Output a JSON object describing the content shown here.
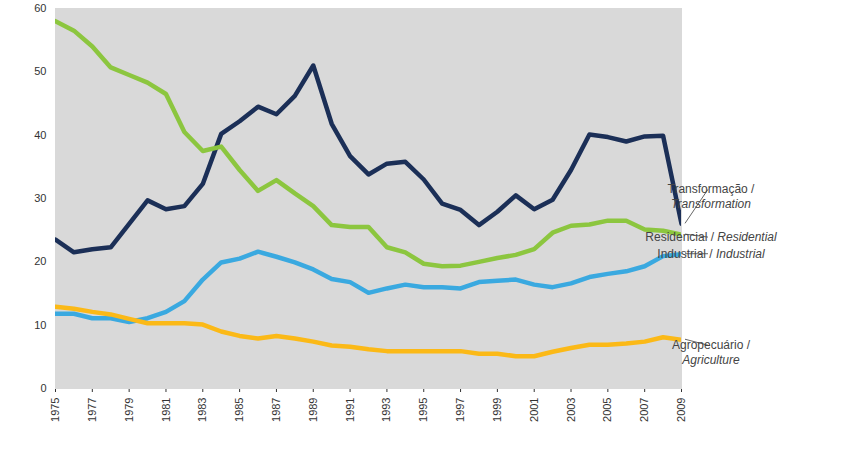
{
  "chart_data": {
    "type": "line",
    "x": [
      1975,
      1976,
      1977,
      1978,
      1979,
      1980,
      1981,
      1982,
      1983,
      1984,
      1985,
      1986,
      1987,
      1988,
      1989,
      1990,
      1991,
      1992,
      1993,
      1994,
      1995,
      1996,
      1997,
      1998,
      1999,
      2000,
      2001,
      2002,
      2003,
      2004,
      2005,
      2006,
      2007,
      2008,
      2009
    ],
    "xlim": [
      1975,
      2009
    ],
    "xticks": [
      1975,
      1977,
      1979,
      1981,
      1983,
      1985,
      1987,
      1989,
      1991,
      1993,
      1995,
      1997,
      1999,
      2001,
      2003,
      2005,
      2007,
      2009
    ],
    "ylim": [
      0,
      60
    ],
    "yticks": [
      0,
      10,
      20,
      30,
      40,
      50,
      60
    ],
    "grid": false,
    "series": [
      {
        "name": "Transformação / Transformation",
        "color": "#1b2f57",
        "values": [
          23.5,
          21.5,
          22,
          22.3,
          26,
          29.7,
          28.3,
          28.8,
          32.3,
          40.2,
          42.2,
          44.5,
          43.3,
          46.2,
          51,
          41.8,
          36.7,
          33.8,
          35.5,
          35.8,
          33,
          29.2,
          28.2,
          25.8,
          27.9,
          30.5,
          28.3,
          29.8,
          34.5,
          40.1,
          39.7,
          39,
          39.8,
          39.9,
          26
        ]
      },
      {
        "name": "Residencial / Residential",
        "color": "#8cc63f",
        "values": [
          58,
          56.5,
          54,
          50.7,
          49.5,
          48.3,
          46.5,
          40.5,
          37.5,
          38.2,
          34.5,
          31.2,
          32.9,
          30.8,
          28.8,
          25.8,
          25.5,
          25.5,
          22.3,
          21.5,
          19.7,
          19.3,
          19.4,
          20,
          20.6,
          21.1,
          22,
          24.6,
          25.7,
          25.9,
          26.5,
          26.5,
          25.1,
          24.9,
          24.3
        ]
      },
      {
        "name": "Industrial / Industrial",
        "color": "#3aa9e0",
        "values": [
          11.8,
          11.8,
          11.1,
          11.1,
          10.5,
          11.1,
          12.1,
          13.8,
          17.2,
          19.9,
          20.5,
          21.6,
          20.8,
          19.9,
          18.8,
          17.3,
          16.8,
          15.1,
          15.8,
          16.4,
          16,
          16,
          15.8,
          16.8,
          17,
          17.2,
          16.4,
          16,
          16.6,
          17.6,
          18.1,
          18.5,
          19.3,
          20.9,
          21.2
        ]
      },
      {
        "name": "Agropecuário / Agriculture",
        "color": "#fbb917",
        "values": [
          12.9,
          12.6,
          12.1,
          11.7,
          11,
          10.3,
          10.3,
          10.3,
          10.1,
          9,
          8.3,
          7.9,
          8.3,
          7.9,
          7.4,
          6.8,
          6.6,
          6.2,
          5.9,
          5.9,
          5.9,
          5.9,
          5.9,
          5.5,
          5.5,
          5.1,
          5.1,
          5.8,
          6.4,
          6.9,
          6.9,
          7.1,
          7.4,
          8.1,
          7.7
        ]
      }
    ]
  }
}
